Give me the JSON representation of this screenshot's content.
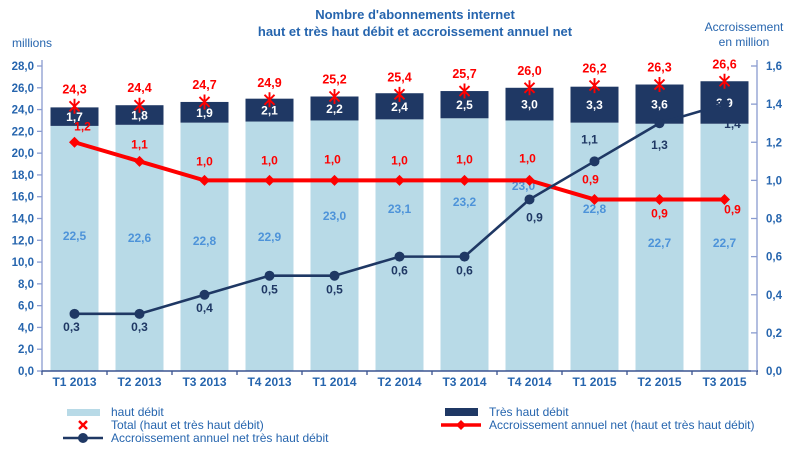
{
  "title": {
    "line1": "Nombre d'abonnements internet",
    "line2": "haut et très haut débit et accroissement annuel net"
  },
  "colors": {
    "text_blue": "#2665AE",
    "bar_label_blue": "#4D93D9",
    "red": "#FE0000",
    "navy": "#1F3864",
    "bar_light": "#B8DAE7",
    "axis_line": "#8A9CD0",
    "axis_line_dark": "#3A5390"
  },
  "chart_data": {
    "type": "combo bar+line",
    "categories": [
      "T1 2013",
      "T2 2013",
      "T3 2013",
      "T4 2013",
      "T1 2014",
      "T2 2014",
      "T3 2014",
      "T4 2014",
      "T1 2015",
      "T2 2015",
      "T3 2015"
    ],
    "series": [
      {
        "name": "haut débit",
        "type": "bar-stack",
        "axis": "left",
        "color": "#B8DAE7",
        "values": [
          22.5,
          22.6,
          22.8,
          22.9,
          23.0,
          23.1,
          23.2,
          23.0,
          22.8,
          22.7,
          22.7
        ]
      },
      {
        "name": "Très haut débit",
        "type": "bar-stack",
        "axis": "left",
        "color": "#1F3864",
        "values": [
          1.7,
          1.8,
          1.9,
          2.1,
          2.2,
          2.4,
          2.5,
          3.0,
          3.3,
          3.6,
          3.9
        ]
      },
      {
        "name": "Total (haut et très haut débit)",
        "type": "x-marker",
        "axis": "left",
        "color": "#FE0000",
        "values": [
          24.3,
          24.4,
          24.7,
          24.9,
          25.2,
          25.4,
          25.7,
          26.0,
          26.2,
          26.3,
          26.6
        ]
      },
      {
        "name": "Accroissement annuel net très haut débit",
        "type": "line-circle",
        "axis": "right",
        "color": "#1F3864",
        "values": [
          0.3,
          0.3,
          0.4,
          0.5,
          0.5,
          0.6,
          0.6,
          0.9,
          1.1,
          1.3,
          1.4
        ]
      },
      {
        "name": "Accroissement annuel net (haut et très haut débit)",
        "type": "line-diamond",
        "axis": "right",
        "color": "#FE0000",
        "values": [
          1.2,
          1.1,
          1.0,
          1.0,
          1.0,
          1.0,
          1.0,
          1.0,
          0.9,
          0.9,
          0.9
        ]
      }
    ],
    "left_axis": {
      "label": "millions",
      "min": 0,
      "max": 28,
      "step": 2
    },
    "right_axis": {
      "label_lines": [
        "Accroissement",
        "en million"
      ],
      "min": 0,
      "max": 1.6,
      "step": 0.2
    },
    "grid": "off",
    "legend_position": "bottom"
  }
}
